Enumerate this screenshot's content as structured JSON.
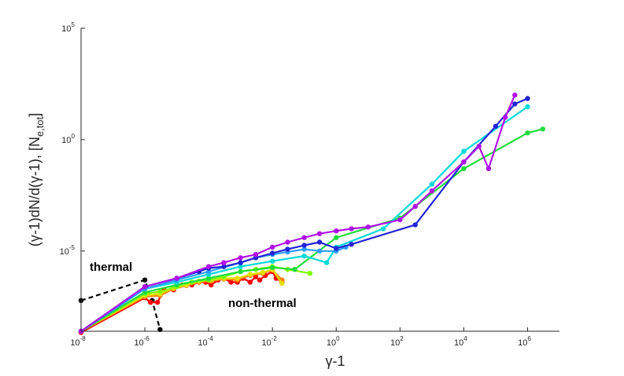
{
  "chart_data": {
    "type": "line",
    "title": "",
    "xlabel": "γ-1",
    "ylabel": "(γ-1)dN/d(γ-1), [N",
    "ylabel_sub": "e,tot",
    "ylabel_end": "]",
    "xscale": "log",
    "yscale": "log",
    "xlim": [
      1e-08,
      10000000.0
    ],
    "ylim": [
      2.5e-09,
      100000.0
    ],
    "grid": false,
    "legend": "none",
    "x_ticks": [
      {
        "base": "10",
        "exp": "-8"
      },
      {
        "base": "10",
        "exp": "-6"
      },
      {
        "base": "10",
        "exp": "-4"
      },
      {
        "base": "10",
        "exp": "-2"
      },
      {
        "base": "10",
        "exp": "0"
      },
      {
        "base": "10",
        "exp": "2"
      },
      {
        "base": "10",
        "exp": "4"
      },
      {
        "base": "10",
        "exp": "6"
      }
    ],
    "y_ticks": [
      {
        "base": "10",
        "exp": "-5"
      },
      {
        "base": "10",
        "exp": "0"
      },
      {
        "base": "10",
        "exp": "5"
      }
    ],
    "annotations": [
      "thermal",
      "non-thermal"
    ],
    "series": [
      {
        "color": "#000000",
        "dashed": true,
        "points": [
          [
            1e-08,
            6e-08
          ],
          [
            1e-06,
            5e-07
          ],
          [
            1.7e-06,
            6e-08
          ],
          [
            3e-06,
            3e-09
          ]
        ]
      },
      {
        "color": "#ff0000",
        "points": [
          [
            1e-08,
            2.2e-09
          ],
          [
            1e-06,
            8e-08
          ],
          [
            1.5e-06,
            5e-08
          ],
          [
            2.5e-06,
            5e-08
          ],
          [
            4e-06,
            1.8e-07
          ],
          [
            8e-06,
            1.8e-07
          ],
          [
            1.5e-05,
            3e-07
          ],
          [
            3e-05,
            3e-07
          ],
          [
            5e-05,
            4e-07
          ],
          [
            8e-05,
            4e-07
          ],
          [
            0.00012,
            3e-07
          ],
          [
            0.0002,
            5e-07
          ],
          [
            0.0003,
            6e-07
          ],
          [
            0.0005,
            4e-07
          ],
          [
            0.0008,
            4e-07
          ],
          [
            0.0012,
            6e-07
          ],
          [
            0.002,
            4e-07
          ],
          [
            0.003,
            7e-07
          ],
          [
            0.004,
            5e-07
          ],
          [
            0.006,
            8e-07
          ],
          [
            0.01,
            1.2e-06
          ],
          [
            0.013,
            6e-07
          ],
          [
            0.02,
            4e-07
          ]
        ]
      },
      {
        "color": "#ff7f00",
        "points": [
          [
            1e-08,
            2.5e-09
          ],
          [
            1e-06,
            9e-08
          ],
          [
            3e-06,
            1e-07
          ],
          [
            8e-06,
            2e-07
          ],
          [
            2e-05,
            2.8e-07
          ],
          [
            5e-05,
            4e-07
          ],
          [
            0.00012,
            4.5e-07
          ],
          [
            0.0003,
            5.5e-07
          ],
          [
            0.0008,
            5e-07
          ],
          [
            0.002,
            8e-07
          ],
          [
            0.005,
            1e-06
          ],
          [
            0.01,
            1.4e-06
          ],
          [
            0.02,
            5e-07
          ]
        ]
      },
      {
        "color": "#e6e000",
        "points": [
          [
            1e-08,
            2.5e-09
          ],
          [
            1e-06,
            1e-07
          ],
          [
            3e-06,
            1.2e-07
          ],
          [
            8e-06,
            2.2e-07
          ],
          [
            2e-05,
            3e-07
          ],
          [
            5e-05,
            4.5e-07
          ],
          [
            0.00012,
            5e-07
          ],
          [
            0.0003,
            6e-07
          ],
          [
            0.0008,
            6e-07
          ],
          [
            0.002,
            9e-07
          ],
          [
            0.005,
            1.1e-06
          ],
          [
            0.01,
            1.5e-06
          ],
          [
            0.02,
            3.5e-07
          ]
        ]
      },
      {
        "color": "#80ff00",
        "points": [
          [
            1e-08,
            2.5e-09
          ],
          [
            1e-06,
            1.2e-07
          ],
          [
            3e-06,
            1.5e-07
          ],
          [
            1e-05,
            2.5e-07
          ],
          [
            3e-05,
            4e-07
          ],
          [
            0.0001,
            5e-07
          ],
          [
            0.0003,
            7e-07
          ],
          [
            0.001,
            1.2e-06
          ],
          [
            0.003,
            1.5e-06
          ],
          [
            0.01,
            2e-06
          ],
          [
            0.03,
            1.5e-06
          ],
          [
            0.15,
            1e-06
          ]
        ]
      },
      {
        "color": "#1fdc3a",
        "points": [
          [
            1e-08,
            2.5e-09
          ],
          [
            1e-06,
            1.4e-07
          ],
          [
            1e-05,
            3e-07
          ],
          [
            0.0001,
            6e-07
          ],
          [
            0.001,
            1.2e-06
          ],
          [
            0.01,
            1.8e-06
          ],
          [
            0.05,
            1.5e-06
          ],
          [
            1.0,
            4e-05
          ],
          [
            100.0,
            0.0003
          ],
          [
            10000.0,
            0.05
          ],
          [
            1000000.0,
            2
          ],
          [
            3000000.0,
            3
          ]
        ]
      },
      {
        "color": "#00d9d9",
        "points": [
          [
            1e-08,
            2.5e-09
          ],
          [
            1e-06,
            2e-07
          ],
          [
            1e-05,
            4e-07
          ],
          [
            0.0001,
            9e-07
          ],
          [
            0.001,
            2e-06
          ],
          [
            0.01,
            3.5e-06
          ],
          [
            0.1,
            6e-06
          ],
          [
            0.5,
            3e-06
          ],
          [
            1.0,
            1.5e-05
          ],
          [
            30.0,
            0.0001
          ],
          [
            1000.0,
            0.01
          ],
          [
            10000.0,
            0.3
          ],
          [
            1000000.0,
            30
          ]
        ]
      },
      {
        "color": "#2e9cff",
        "points": [
          [
            1e-08,
            2.5e-09
          ],
          [
            1e-06,
            2e-07
          ],
          [
            1e-05,
            5e-07
          ],
          [
            0.0001,
            1.2e-06
          ],
          [
            0.001,
            3e-06
          ],
          [
            0.003,
            5e-06
          ],
          [
            0.01,
            7e-06
          ],
          [
            0.03,
            9e-06
          ],
          [
            0.1,
            1.2e-05
          ],
          [
            0.3,
            1e-05
          ],
          [
            1.0,
            1e-05
          ],
          [
            2.0,
            1.5e-05
          ]
        ]
      },
      {
        "color": "#2323d8",
        "points": [
          [
            1e-08,
            2.5e-09
          ],
          [
            1e-06,
            2.5e-07
          ],
          [
            1e-05,
            6e-07
          ],
          [
            5e-05,
            1.2e-06
          ],
          [
            0.0001,
            1.7e-06
          ],
          [
            0.0003,
            2e-06
          ],
          [
            0.001,
            3e-06
          ],
          [
            0.003,
            5e-06
          ],
          [
            0.01,
            8e-06
          ],
          [
            0.03,
            1.2e-05
          ],
          [
            0.1,
            1.8e-05
          ],
          [
            0.3,
            2.5e-05
          ],
          [
            1.0,
            1.3e-05
          ],
          [
            3.0,
            2e-05
          ],
          [
            300.0,
            0.00015
          ],
          [
            10000.0,
            0.1
          ],
          [
            100000.0,
            4
          ],
          [
            400000.0,
            40
          ],
          [
            1000000.0,
            70
          ]
        ]
      },
      {
        "color": "#b010e8",
        "points": [
          [
            1e-08,
            2.5e-09
          ],
          [
            1e-06,
            2.5e-07
          ],
          [
            1e-05,
            6e-07
          ],
          [
            0.0001,
            2e-06
          ],
          [
            0.0003,
            3e-06
          ],
          [
            0.001,
            5e-06
          ],
          [
            0.003,
            7e-06
          ],
          [
            0.01,
            1.5e-05
          ],
          [
            0.03,
            2.5e-05
          ],
          [
            0.1,
            4e-05
          ],
          [
            0.3,
            6e-05
          ],
          [
            1.0,
            8e-05
          ],
          [
            3.0,
            0.0001
          ],
          [
            10.0,
            0.00012
          ],
          [
            100.0,
            0.00025
          ],
          [
            300.0,
            0.001
          ],
          [
            1000.0,
            0.005
          ],
          [
            10000.0,
            0.1
          ],
          [
            30000.0,
            0.5
          ],
          [
            60000.0,
            0.05
          ],
          [
            200000.0,
            10
          ],
          [
            400000.0,
            100
          ]
        ]
      }
    ]
  }
}
